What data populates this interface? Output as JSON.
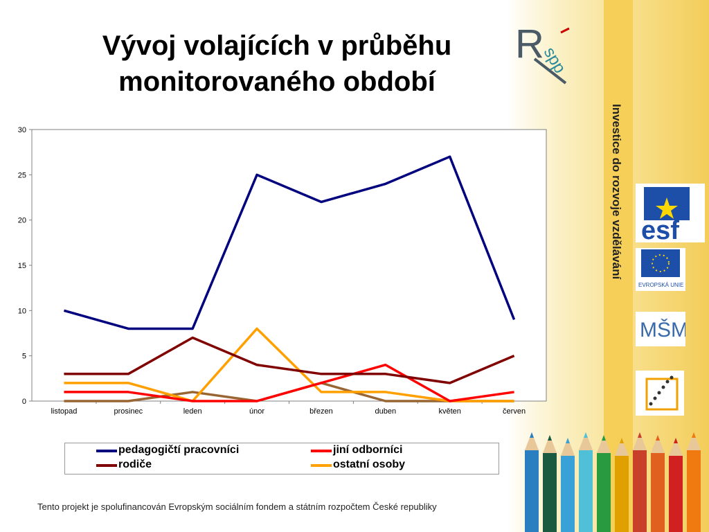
{
  "slide": {
    "title_line1": "Vývoj volajících v průběhu",
    "title_line2": "monitorovaného období",
    "side_text": "Investice do rozvoje vzdělávání",
    "footer": "Tento projekt je spolufinancován Evropským sociálním fondem a státním rozpočtem České republiky",
    "logos": {
      "rspp": "RSPP",
      "esf": "esf",
      "eu": "EVROPSKÁ UNIE",
      "msmt": "MŠMT"
    }
  },
  "chart_data": {
    "type": "line",
    "categories": [
      "listopad",
      "prosinec",
      "leden",
      "únor",
      "březen",
      "duben",
      "květen",
      "červen"
    ],
    "ylim": [
      0,
      30
    ],
    "yticks": [
      0,
      5,
      10,
      15,
      20,
      25,
      30
    ],
    "grid": false,
    "legend_position": "bottom",
    "series": [
      {
        "name": "pedagogičtí pracovníci",
        "color": "#00007f",
        "values": [
          10,
          8,
          8,
          25,
          22,
          24,
          27,
          9
        ]
      },
      {
        "name": "jiní odborníci",
        "color": "#ff0000",
        "values": [
          1,
          1,
          0,
          0,
          2,
          4,
          0,
          1
        ]
      },
      {
        "name": "rodiče",
        "color": "#800000",
        "values": [
          3,
          3,
          7,
          4,
          3,
          3,
          2,
          5
        ]
      },
      {
        "name": "ostatní osoby",
        "color": "#ffa000",
        "values": [
          2,
          2,
          0,
          8,
          1,
          1,
          0,
          0
        ]
      },
      {
        "name": "",
        "color": "#996633",
        "values": [
          0,
          0,
          1,
          0,
          2,
          0,
          0,
          0
        ]
      }
    ]
  }
}
